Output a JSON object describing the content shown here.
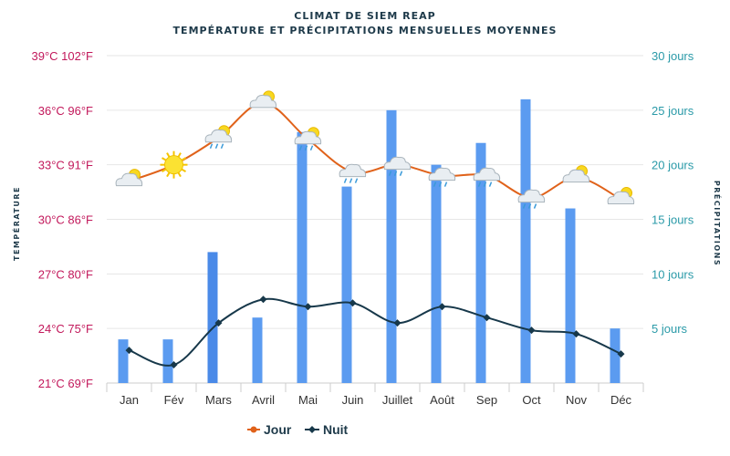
{
  "chart_data": {
    "type": "bar+line",
    "title": "CLIMAT DE SIEM REAP",
    "subtitle": "TEMPÉRATURE ET PRÉCIPITATIONS MENSUELLES MOYENNES",
    "ylabel_left": "TEMPÉRATURE",
    "ylabel_right": "PRÉCIPITATIONS",
    "categories": [
      "Jan",
      "Fév",
      "Mars",
      "Avril",
      "Mai",
      "Juin",
      "Juillet",
      "Août",
      "Sep",
      "Oct",
      "Nov",
      "Déc"
    ],
    "ylim_left": [
      21,
      39
    ],
    "ylim_right": [
      0,
      30
    ],
    "left_ticks": [
      "21°C 69°F",
      "24°C 75°F",
      "27°C 80°F",
      "30°C 86°F",
      "33°C 91°F",
      "36°C 96°F",
      "39°C 102°F"
    ],
    "right_ticks": [
      "",
      "5 jours",
      "10 jours",
      "15 jours",
      "20 jours",
      "25 jours",
      "30 jours"
    ],
    "series": [
      {
        "name": "Jour",
        "type": "line",
        "color": "#e0621a",
        "values": [
          32.1,
          33.0,
          34.5,
          36.4,
          34.4,
          32.6,
          33.0,
          32.4,
          32.4,
          31.2,
          32.3,
          31.1
        ]
      },
      {
        "name": "Nuit",
        "type": "line",
        "color": "#17384a",
        "values": [
          22.8,
          22.0,
          24.3,
          25.6,
          25.2,
          25.4,
          24.3,
          25.2,
          24.6,
          23.9,
          23.7,
          22.6
        ]
      },
      {
        "name": "Précipitations",
        "type": "bar",
        "axis": "right",
        "color": "#5b9bf0",
        "values": [
          4,
          4,
          12,
          6,
          23,
          18,
          25,
          20,
          22,
          26,
          16,
          5
        ]
      }
    ],
    "weather_icons": [
      "sun-cloud",
      "sun",
      "cloud-sun-rain",
      "sun-cloud",
      "cloud-sun-rain",
      "cloud-rain",
      "cloud-rain",
      "cloud-rain",
      "cloud-rain",
      "cloud-rain",
      "sun-cloud",
      "sun-cloud"
    ],
    "grid": true,
    "legend": "bottom"
  }
}
